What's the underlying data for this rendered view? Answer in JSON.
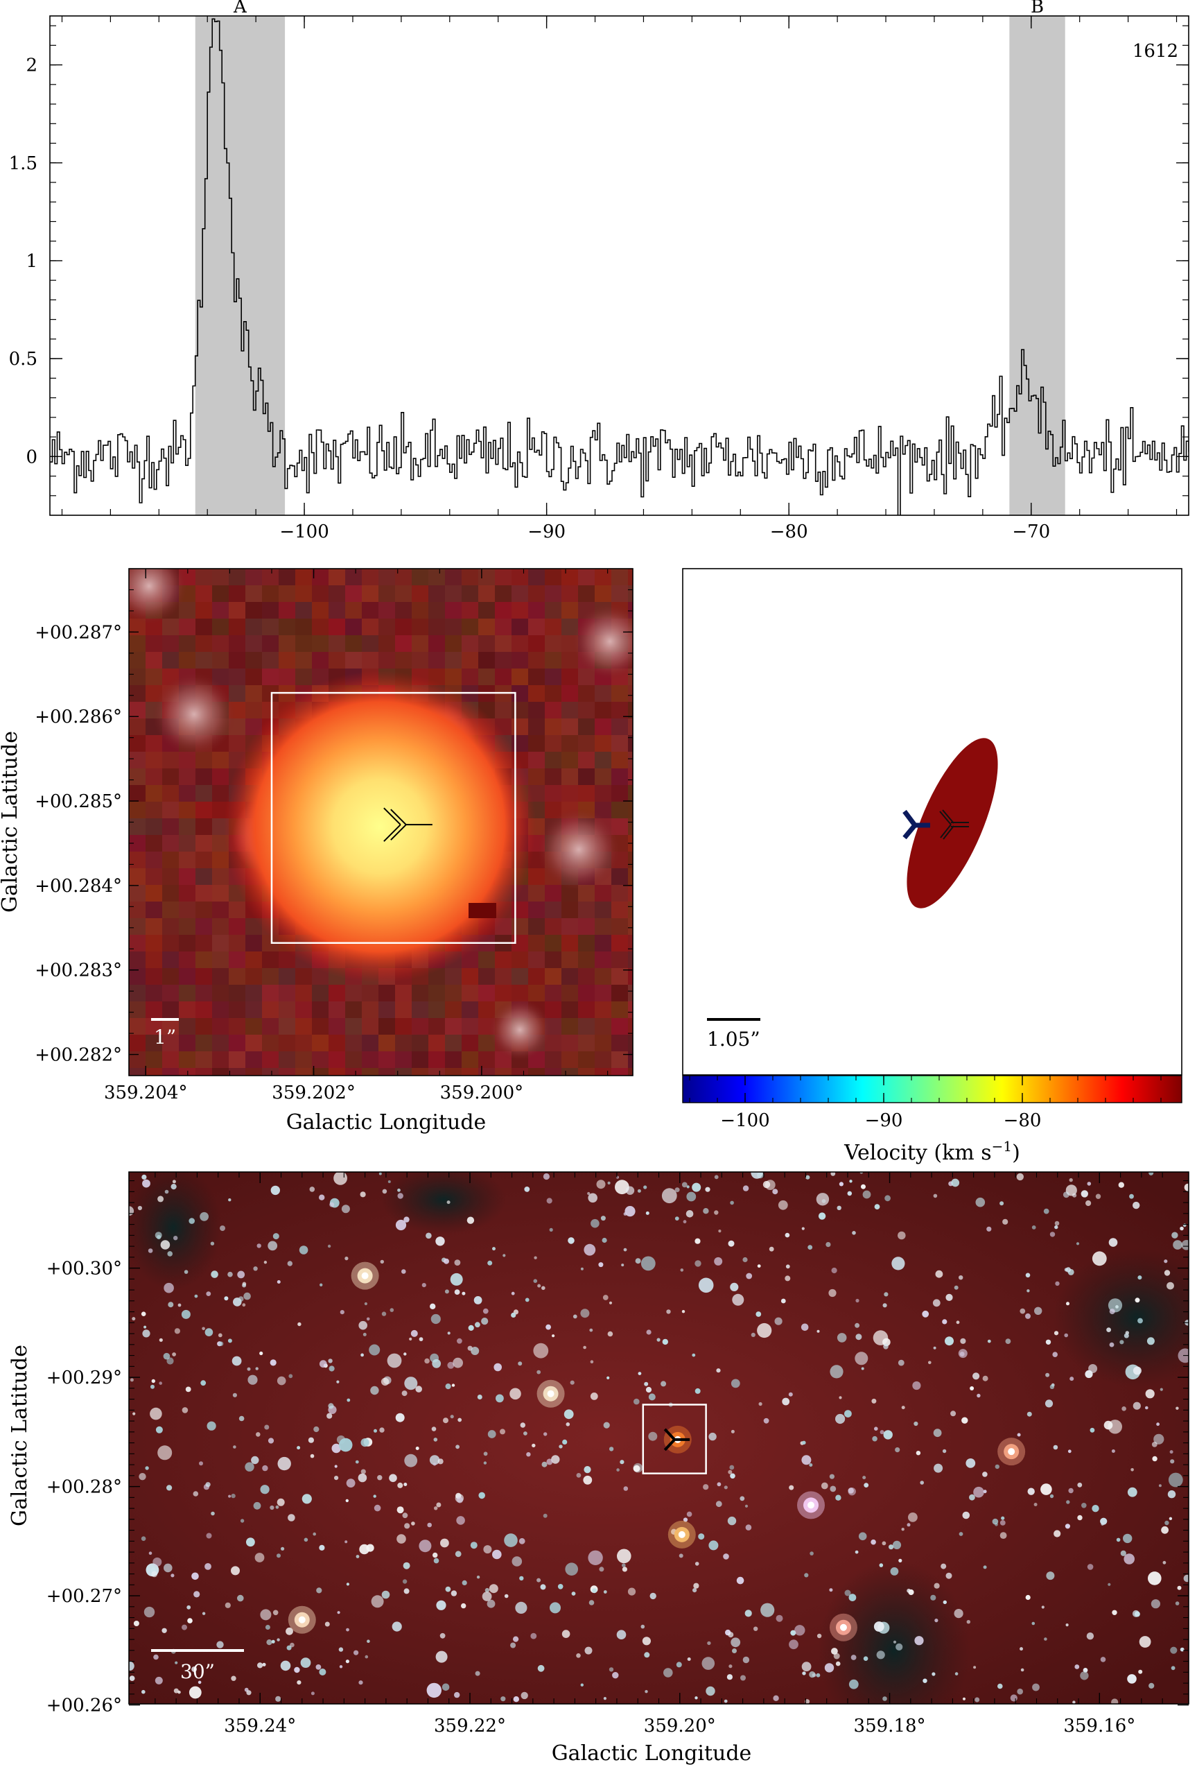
{
  "chart_data": [
    {
      "type": "line",
      "panel": "spectrum",
      "annotation_text": "1612",
      "xlim": [
        -110.5,
        -63.5
      ],
      "ylim": [
        -0.3,
        2.25
      ],
      "x_ticks": [
        -100,
        -90,
        -80,
        -70
      ],
      "x_tick_labels": [
        "−100",
        "−90",
        "−80",
        "−70"
      ],
      "y_ticks": [
        0,
        0.5,
        1,
        1.5,
        2
      ],
      "y_tick_labels": [
        "0",
        "0.5",
        "1",
        "1.5",
        "2"
      ],
      "shaded_regions": [
        {
          "label": "A",
          "x_range": [
            -104.5,
            -100.8
          ]
        },
        {
          "label": "B",
          "x_range": [
            -70.9,
            -68.6
          ]
        }
      ],
      "peaks": [
        {
          "center": -103.7,
          "amplitude": 2.15,
          "width": 0.45
        },
        {
          "center": -102.6,
          "amplitude": 0.5,
          "width": 0.7
        },
        {
          "center": -70.1,
          "amplitude": 0.35,
          "width": 0.6
        },
        {
          "center": -71.2,
          "amplitude": 0.12,
          "width": 0.5
        }
      ],
      "noise_level": 0.09,
      "step": 0.1
    },
    {
      "type": "heatmap",
      "panel": "zoom-image",
      "xlabel": "Galactic Longitude",
      "ylabel": "Galactic Latitude",
      "xlim": [
        359.2042,
        359.1982
      ],
      "ylim": [
        0.28175,
        0.28775
      ],
      "x_tick_labels": [
        "359.204°",
        "359.202°",
        "359.200°"
      ],
      "x_ticks": [
        359.204,
        359.202,
        359.2
      ],
      "y_tick_labels": [
        "+00.282°",
        "+00.283°",
        "+00.284°",
        "+00.285°",
        "+00.286°",
        "+00.287°"
      ],
      "y_ticks": [
        0.282,
        0.283,
        0.284,
        0.285,
        0.286,
        0.287
      ],
      "box": {
        "l_range": [
          359.2025,
          359.1996
        ],
        "b_range": [
          0.28332,
          0.28628
        ]
      },
      "marker": {
        "l": 359.2009,
        "b": 0.28472
      },
      "scale_bar_label": "1”"
    },
    {
      "type": "scatter",
      "panel": "velocity-map",
      "xlabel": "Velocity (km s",
      "xlabel_sup": "−1",
      "xlabel_close": ")",
      "colorbar_range": [
        -104.5,
        -68.5
      ],
      "colorbar_ticks": [
        -100,
        -90,
        -80
      ],
      "colorbar_tick_labels": [
        "−100",
        "−90",
        "−80"
      ],
      "features": [
        {
          "kind": "ellipse",
          "velocity": -70.0,
          "color": "#8b0a0a"
        },
        {
          "kind": "marker",
          "velocity": -103.5,
          "color": "#0b1a5c"
        },
        {
          "kind": "marker",
          "velocity": null,
          "color": "#222222"
        }
      ],
      "scale_bar_label": "1.05”"
    },
    {
      "type": "heatmap",
      "panel": "wide-image",
      "xlabel": "Galactic Longitude",
      "ylabel": "Galactic Latitude",
      "xlim": [
        359.2525,
        359.1515
      ],
      "ylim": [
        0.2601,
        0.3088
      ],
      "x_ticks": [
        359.24,
        359.22,
        359.2,
        359.18,
        359.16
      ],
      "x_tick_labels": [
        "359.24°",
        "359.22°",
        "359.20°",
        "359.18°",
        "359.16°"
      ],
      "y_ticks": [
        0.26,
        0.27,
        0.28,
        0.29,
        0.3
      ],
      "y_tick_labels": [
        "+00.26°",
        "+00.27°",
        "+00.28°",
        "+00.29°",
        "+00.30°"
      ],
      "box": {
        "l_range": [
          359.2035,
          359.1975
        ],
        "b_range": [
          0.2812,
          0.2875
        ]
      },
      "marker": {
        "l": 359.2005,
        "b": 0.2843
      },
      "bright_sources": [
        {
          "l": 359.2002,
          "b": 0.2843,
          "color": "#f07a2a"
        },
        {
          "l": 359.1998,
          "b": 0.2756,
          "color": "#f2b86a"
        },
        {
          "l": 359.1684,
          "b": 0.2832,
          "color": "#f0a080"
        },
        {
          "l": 359.1844,
          "b": 0.2671,
          "color": "#f0a090"
        },
        {
          "l": 359.236,
          "b": 0.2678,
          "color": "#f4d6b8"
        },
        {
          "l": 359.1875,
          "b": 0.2783,
          "color": "#f0c8f0"
        },
        {
          "l": 359.23,
          "b": 0.2993,
          "color": "#f4e0c0"
        },
        {
          "l": 359.2123,
          "b": 0.2885,
          "color": "#f0dcc0"
        }
      ],
      "scale_bar_label": "30”"
    }
  ],
  "colors": {
    "shade": "#c8c8c8",
    "bg_red": "#5a1414",
    "box": "#ffffff",
    "ellipse": "#8b0a0a",
    "blue_marker": "#0b1a5c"
  }
}
